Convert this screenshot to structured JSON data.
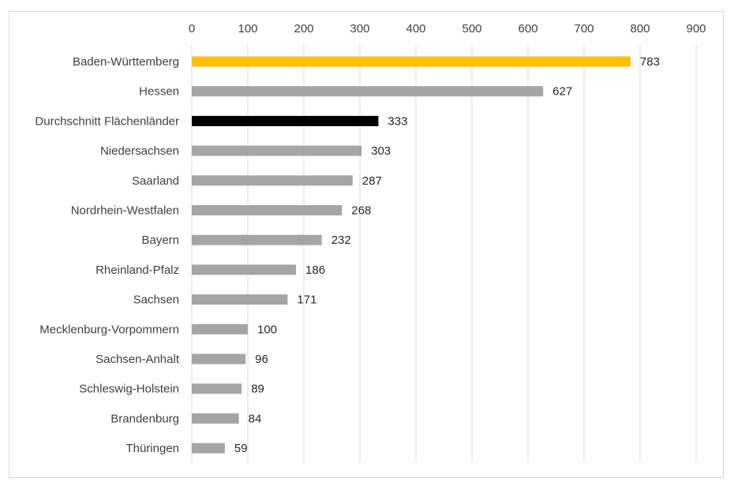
{
  "chart_data": {
    "type": "bar",
    "orientation": "horizontal",
    "title": "",
    "xlabel": "",
    "ylabel": "",
    "xlim": [
      0,
      900
    ],
    "x_ticks": [
      0,
      100,
      200,
      300,
      400,
      500,
      600,
      700,
      800,
      900
    ],
    "x_axis_position": "top",
    "grid": true,
    "legend": "none",
    "categories": [
      "Baden-Württemberg",
      "Hessen",
      "Durchschnitt Flächenländer",
      "Niedersachsen",
      "Saarland",
      "Nordrhein-Westfalen",
      "Bayern",
      "Rheinland-Pfalz",
      "Sachsen",
      "Mecklenburg-Vorpommern",
      "Sachsen-Anhalt",
      "Schleswig-Holstein",
      "Brandenburg",
      "Thüringen"
    ],
    "values": [
      783,
      627,
      333,
      303,
      287,
      268,
      232,
      186,
      171,
      100,
      96,
      89,
      84,
      59
    ],
    "colors": {
      "Baden-Württemberg": "#FFC000",
      "Durchschnitt Flächenländer": "#000000",
      "default": "#A5A5A5"
    }
  }
}
